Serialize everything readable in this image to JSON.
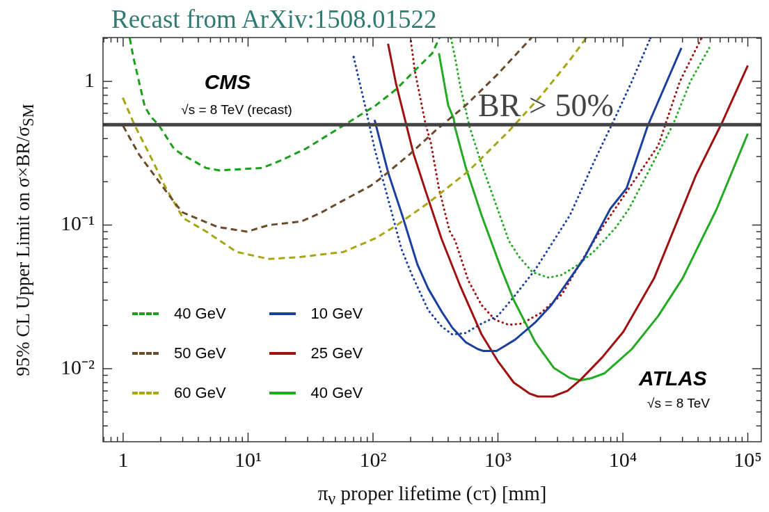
{
  "chart_data": {
    "type": "line",
    "title": "Recast from ArXiv:1508.01522",
    "xlabel": "π$_{ν}$ proper lifetime (cτ) [mm]",
    "ylabel": "95% CL Upper Limit on σ×BR/σ$_{SM}$",
    "log": "xy",
    "xlim": [
      0.69,
      128000
    ],
    "ylim": [
      0.0031,
      2.02
    ],
    "xticks": [
      {
        "value": 0.7,
        "label": null
      },
      {
        "value": 0.8,
        "label": null
      },
      {
        "value": 0.9,
        "label": null
      },
      1,
      {
        "value": 2,
        "label": null
      },
      {
        "value": 3,
        "label": null
      },
      {
        "value": 4,
        "label": null
      },
      {
        "value": 5,
        "label": null
      },
      {
        "value": 6,
        "label": null
      },
      {
        "value": 7,
        "label": null
      },
      {
        "value": 8,
        "label": null
      },
      {
        "value": 9,
        "label": null
      },
      {
        "value": 10,
        "label": "10¹"
      },
      {
        "value": 20,
        "label": null
      },
      {
        "value": 30,
        "label": null
      },
      {
        "value": 40,
        "label": null
      },
      {
        "value": 50,
        "label": null
      },
      {
        "value": 60,
        "label": null
      },
      {
        "value": 70,
        "label": null
      },
      {
        "value": 80,
        "label": null
      },
      {
        "value": 90,
        "label": null
      },
      {
        "value": 100,
        "label": "10²"
      },
      {
        "value": 200,
        "label": null
      },
      {
        "value": 300,
        "label": null
      },
      {
        "value": 400,
        "label": null
      },
      {
        "value": 500,
        "label": null
      },
      {
        "value": 600,
        "label": null
      },
      {
        "value": 700,
        "label": null
      },
      {
        "value": 800,
        "label": null
      },
      {
        "value": 900,
        "label": null
      },
      {
        "value": 1000,
        "label": "10³"
      },
      {
        "value": 2000,
        "label": null
      },
      {
        "value": 3000,
        "label": null
      },
      {
        "value": 4000,
        "label": null
      },
      {
        "value": 5000,
        "label": null
      },
      {
        "value": 6000,
        "label": null
      },
      {
        "value": 7000,
        "label": null
      },
      {
        "value": 8000,
        "label": null
      },
      {
        "value": 9000,
        "label": null
      },
      {
        "value": 10000,
        "label": "10⁴"
      },
      {
        "value": 20000,
        "label": null
      },
      {
        "value": 30000,
        "label": null
      },
      {
        "value": 40000,
        "label": null
      },
      {
        "value": 50000,
        "label": null
      },
      {
        "value": 60000,
        "label": null
      },
      {
        "value": 70000,
        "label": null
      },
      {
        "value": 80000,
        "label": null
      },
      {
        "value": 90000,
        "label": null
      },
      {
        "value": 100000,
        "label": "10⁵"
      }
    ],
    "yticks": [
      {
        "value": 0.004,
        "label": null
      },
      {
        "value": 0.005,
        "label": null
      },
      {
        "value": 0.006,
        "label": null
      },
      {
        "value": 0.007,
        "label": null
      },
      {
        "value": 0.008,
        "label": null
      },
      {
        "value": 0.009,
        "label": null
      },
      {
        "value": 0.01,
        "label": "10⁻²"
      },
      {
        "value": 0.02,
        "label": null
      },
      {
        "value": 0.03,
        "label": null
      },
      {
        "value": 0.04,
        "label": null
      },
      {
        "value": 0.05,
        "label": null
      },
      {
        "value": 0.06,
        "label": null
      },
      {
        "value": 0.07,
        "label": null
      },
      {
        "value": 0.08,
        "label": null
      },
      {
        "value": 0.09,
        "label": null
      },
      {
        "value": 0.1,
        "label": "10⁻¹"
      },
      {
        "value": 0.2,
        "label": null
      },
      {
        "value": 0.3,
        "label": null
      },
      {
        "value": 0.4,
        "label": null
      },
      {
        "value": 0.5,
        "label": null
      },
      {
        "value": 0.6,
        "label": null
      },
      {
        "value": 0.7,
        "label": null
      },
      {
        "value": 0.8,
        "label": null
      },
      {
        "value": 0.9,
        "label": null
      },
      1,
      {
        "value": 2,
        "label": null
      }
    ],
    "legend": "bottom left",
    "ref_lines": [
      {
        "axis": "y",
        "value": 0.5,
        "label": "BR > 50%",
        "color": "#444444"
      }
    ],
    "annotations": [
      "CMS",
      "√s = 8 TeV (recast)",
      "ATLAS",
      "√s = 8 TeV"
    ],
    "series": [
      {
        "name": "40 GeV",
        "color": "#19a019",
        "line_style": "dashed",
        "x": [
          1.13,
          1.21,
          1.49,
          1.66,
          1.92,
          2.55,
          2.96,
          4.6,
          5.9,
          13,
          18,
          29,
          55,
          105,
          153,
          216,
          298,
          339
        ],
        "values": [
          2.0,
          1.46,
          0.67,
          0.57,
          0.5,
          0.34,
          0.31,
          0.25,
          0.24,
          0.25,
          0.28,
          0.34,
          0.48,
          0.68,
          0.88,
          1.19,
          1.57,
          2.0
        ]
      },
      {
        "name": "50 GeV",
        "color": "#6b4a2b",
        "line_style": "dashed",
        "x": [
          1,
          1.34,
          2.24,
          2.96,
          5.7,
          9.8,
          14.7,
          26.7,
          37.7,
          60,
          96,
          114,
          196,
          321,
          551,
          993,
          1840
        ],
        "values": [
          0.49,
          0.31,
          0.169,
          0.123,
          0.097,
          0.09,
          0.1,
          0.106,
          0.121,
          0.151,
          0.188,
          0.21,
          0.31,
          0.46,
          0.68,
          1.12,
          2.0
        ]
      },
      {
        "name": "60 GeV",
        "color": "#a8a512",
        "line_style": "dashed",
        "x": [
          1,
          1.23,
          1.69,
          2.15,
          3.01,
          4.64,
          8.1,
          14.7,
          26.7,
          58,
          105,
          153,
          275,
          580,
          1220,
          2200,
          3770,
          5070
        ],
        "values": [
          0.76,
          0.5,
          0.29,
          0.188,
          0.112,
          0.09,
          0.065,
          0.058,
          0.06,
          0.065,
          0.081,
          0.099,
          0.142,
          0.237,
          0.45,
          0.79,
          1.41,
          2.0
        ]
      },
      {
        "name": "10 GeV",
        "color": "#1a3fa0",
        "line_style": "solid",
        "x": [
          103,
          132,
          173,
          227,
          277,
          354,
          431,
          551,
          689,
          759,
          975,
          1370,
          1990,
          2670,
          4850,
          7940,
          10700,
          15800,
          29400
        ],
        "values": [
          0.54,
          0.233,
          0.114,
          0.053,
          0.036,
          0.025,
          0.0193,
          0.0153,
          0.0137,
          0.0133,
          0.0133,
          0.0159,
          0.021,
          0.0277,
          0.058,
          0.13,
          0.18,
          0.49,
          1.71
        ]
      },
      {
        "name": "25 GeV",
        "color": "#a01010",
        "line_style": "solid",
        "x": [
          132,
          153,
          211,
          264,
          354,
          500,
          740,
          998,
          1340,
          1800,
          2090,
          2740,
          3600,
          4600,
          6840,
          10100,
          17800,
          38500,
          63100,
          100000
        ],
        "values": [
          1.83,
          0.96,
          0.314,
          0.172,
          0.08,
          0.0375,
          0.0173,
          0.0113,
          0.008,
          0.0067,
          0.0064,
          0.0064,
          0.007,
          0.0084,
          0.012,
          0.0181,
          0.0427,
          0.223,
          0.53,
          1.29
        ]
      },
      {
        "name": "40 GeV",
        "color": "#22aa22",
        "line_style": "solid",
        "x": [
          337,
          400,
          443,
          453,
          551,
          740,
          1050,
          1340,
          1990,
          2810,
          3770,
          4600,
          5610,
          7160,
          11800,
          19200,
          30100,
          56500,
          100000
        ],
        "values": [
          1.57,
          0.68,
          0.55,
          0.48,
          0.254,
          0.117,
          0.051,
          0.03,
          0.0153,
          0.0101,
          0.0086,
          0.0083,
          0.0086,
          0.0093,
          0.0137,
          0.0233,
          0.0427,
          0.13,
          0.433
        ]
      },
      {
        "color": "#1a3fa0",
        "line_style": "dotted",
        "x": [
          70,
          87,
          103,
          132,
          169,
          205,
          277,
          354,
          431,
          551,
          740,
          998,
          1340,
          1990,
          3770,
          5920,
          8760,
          11800,
          16600
        ],
        "values": [
          1.48,
          0.66,
          0.34,
          0.152,
          0.068,
          0.045,
          0.0255,
          0.0197,
          0.0173,
          0.0177,
          0.0206,
          0.0233,
          0.0316,
          0.049,
          0.117,
          0.28,
          0.57,
          1.0,
          2.0
        ]
      },
      {
        "color": "#a01010",
        "line_style": "dotted",
        "x": [
          201,
          216,
          264,
          290,
          337,
          410,
          454,
          580,
          740,
          950,
          1220,
          1550,
          2200,
          3260,
          4600,
          6840,
          19200,
          28600,
          42500
        ],
        "values": [
          1.91,
          1.19,
          0.5,
          0.375,
          0.18,
          0.091,
          0.078,
          0.041,
          0.0277,
          0.0219,
          0.0202,
          0.0206,
          0.0244,
          0.033,
          0.055,
          0.096,
          0.358,
          1.0,
          2.0
        ]
      },
      {
        "color": "#22aa22",
        "line_style": "dotted",
        "x": [
          421,
          453,
          500,
          594,
          740,
          998,
          1220,
          1480,
          1890,
          2550,
          3260,
          4390,
          5920,
          8760,
          11200,
          25200,
          34700,
          49100
        ],
        "values": [
          2.0,
          1.48,
          0.92,
          0.48,
          0.265,
          0.128,
          0.078,
          0.06,
          0.047,
          0.043,
          0.045,
          0.053,
          0.066,
          0.096,
          0.13,
          0.5,
          1.0,
          1.71
        ]
      }
    ]
  }
}
